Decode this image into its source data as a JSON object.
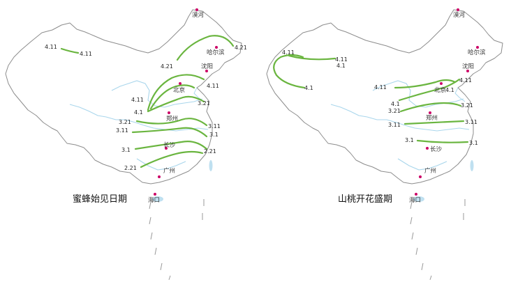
{
  "maps": [
    {
      "caption": "蜜蜂始见日期",
      "colors": {
        "isoline": "#6ab53f",
        "city_dot": "#cc0066",
        "river": "#a9d6ec",
        "border": "#8c8c8c"
      },
      "cities": [
        "漠河",
        "哈尔滨",
        "沈阳",
        "北京",
        "郑州",
        "长沙",
        "广州",
        "海口"
      ],
      "isolines": [
        "4.11",
        "4.11",
        "4.21",
        "4.21",
        "4.11",
        "3.21",
        "4.11",
        "4.1",
        "3.21",
        "3.11",
        "3.11",
        "3.1",
        "3.1",
        "2.21",
        "2.21"
      ]
    },
    {
      "caption": "山桃开花盛期",
      "colors": {
        "isoline": "#6ab53f",
        "city_dot": "#cc0066",
        "river": "#a9d6ec",
        "border": "#8c8c8c"
      },
      "cities": [
        "漠河",
        "哈尔滨",
        "沈阳",
        "北京",
        "郑州",
        "长沙",
        "广州",
        "海口"
      ],
      "isolines": [
        "4.11",
        "4.11",
        "4.1",
        "4.1",
        "4.11",
        "4.11",
        "4.1",
        "4.1",
        "3.21",
        "3.21",
        "3.11",
        "3.11",
        "3.1",
        "3.1"
      ]
    }
  ]
}
